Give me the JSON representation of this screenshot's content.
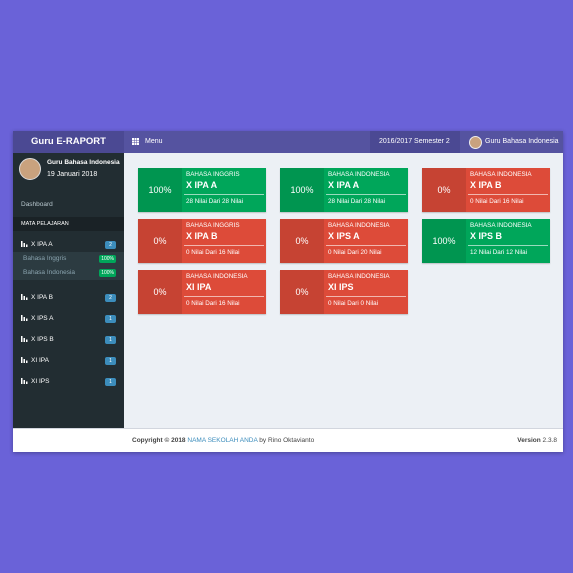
{
  "header": {
    "brand": "Guru E-RAPORT",
    "menu": "Menu",
    "period": "2016/2017 Semester 2",
    "user": "Guru Bahasa Indonesia"
  },
  "sidebar": {
    "user_name": "Guru Bahasa Indonesia",
    "date": "19 Januari 2018",
    "dashboard": "Dashboard",
    "section": "MATA PELAJARAN",
    "items": [
      {
        "label": "X IPA A",
        "badge": "2",
        "subitems": [
          {
            "label": "Bahasa Inggris",
            "badge": "100%"
          },
          {
            "label": "Bahasa Indonesia",
            "badge": "100%"
          }
        ]
      },
      {
        "label": "X IPA B",
        "badge": "2"
      },
      {
        "label": "X IPS A",
        "badge": "1"
      },
      {
        "label": "X IPS B",
        "badge": "1"
      },
      {
        "label": "XI IPA",
        "badge": "1"
      },
      {
        "label": "XI IPS",
        "badge": "1"
      }
    ]
  },
  "cards": [
    {
      "percent": "100%",
      "subject": "BAHASA INGGRIS",
      "class": "X IPA A",
      "info": "28 Nilai Dari 28 Nilai",
      "color": "#00a65a"
    },
    {
      "percent": "100%",
      "subject": "BAHASA INDONESIA",
      "class": "X IPA A",
      "info": "28 Nilai Dari 28 Nilai",
      "color": "#00a65a"
    },
    {
      "percent": "0%",
      "subject": "BAHASA INDONESIA",
      "class": "X IPA B",
      "info": "0 Nilai Dari 16 Nilai",
      "color": "#dd4b39"
    },
    {
      "percent": "0%",
      "subject": "BAHASA INGGRIS",
      "class": "X IPA B",
      "info": "0 Nilai Dari 16 Nilai",
      "color": "#dd4b39"
    },
    {
      "percent": "0%",
      "subject": "BAHASA INDONESIA",
      "class": "X IPS A",
      "info": "0 Nilai Dari 20 Nilai",
      "color": "#dd4b39"
    },
    {
      "percent": "100%",
      "subject": "BAHASA INDONESIA",
      "class": "X IPS B",
      "info": "12 Nilai Dari 12 Nilai",
      "color": "#00a65a"
    },
    {
      "percent": "0%",
      "subject": "BAHASA INDONESIA",
      "class": "XI IPA",
      "info": "0 Nilai Dari 16 Nilai",
      "color": "#dd4b39"
    },
    {
      "percent": "0%",
      "subject": "BAHASA INDONESIA",
      "class": "XI IPS",
      "info": "0 Nilai Dari 0 Nilai",
      "color": "#dd4b39"
    }
  ],
  "footer": {
    "copyright": "Copyright © 2018",
    "school": "NAMA SEKOLAH ANDA",
    "by": "by Rino Oktavianto",
    "version_label": "Version",
    "version": "2.3.8"
  }
}
